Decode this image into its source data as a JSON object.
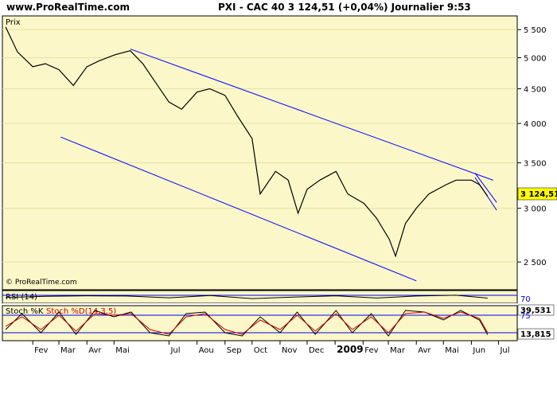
{
  "header": {
    "site": "www.ProRealTime.com",
    "quote": "PXI - CAC 40   3 124,51 (+0,04%)   Journalier  9:53"
  },
  "chart_data": [
    {
      "type": "line",
      "panel": "price",
      "label": "Prix",
      "watermark": "© ProRealTime.com",
      "last_value_label": "3 124,51",
      "yticks": [
        "5 500",
        "5 000",
        "4 500",
        "4 000",
        "3 500",
        "3 000",
        "2 500"
      ],
      "ytick_values": [
        5500,
        5000,
        4500,
        4000,
        3500,
        3000,
        2500
      ],
      "ylim": [
        2300,
        5700
      ],
      "log_scale": true,
      "x": [
        "2008-01-02",
        "2008-01-15",
        "2008-02-01",
        "2008-02-15",
        "2008-03-01",
        "2008-03-17",
        "2008-04-01",
        "2008-04-15",
        "2008-05-02",
        "2008-05-19",
        "2008-06-02",
        "2008-06-16",
        "2008-07-01",
        "2008-07-15",
        "2008-08-01",
        "2008-08-15",
        "2008-09-01",
        "2008-09-15",
        "2008-10-01",
        "2008-10-10",
        "2008-10-27",
        "2008-11-10",
        "2008-11-21",
        "2008-12-01",
        "2008-12-15",
        "2009-01-02",
        "2009-01-15",
        "2009-02-02",
        "2009-02-16",
        "2009-03-02",
        "2009-03-09",
        "2009-03-20",
        "2009-04-01",
        "2009-04-15",
        "2009-05-04",
        "2009-05-15",
        "2009-06-01",
        "2009-06-10",
        "2009-06-19"
      ],
      "values": [
        5550,
        5100,
        4850,
        4900,
        4800,
        4550,
        4850,
        4950,
        5050,
        5120,
        4900,
        4600,
        4300,
        4200,
        4450,
        4500,
        4400,
        4100,
        3800,
        3150,
        3400,
        3300,
        2950,
        3200,
        3300,
        3400,
        3150,
        3050,
        2900,
        2700,
        2550,
        2850,
        3000,
        3150,
        3250,
        3300,
        3300,
        3250,
        3125
      ],
      "channel_lines": [
        {
          "x": [
            "2008-05-19",
            "2009-06-25"
          ],
          "values": [
            5150,
            3300
          ]
        },
        {
          "x": [
            "2008-03-03",
            "2009-04-01"
          ],
          "values": [
            3820,
            2345
          ]
        },
        {
          "x": [
            "2009-06-05",
            "2009-06-29"
          ],
          "values": [
            3380,
            3060
          ]
        },
        {
          "x": [
            "2009-06-05",
            "2009-06-29"
          ],
          "values": [
            3330,
            2980
          ]
        }
      ]
    },
    {
      "type": "line",
      "panel": "rsi",
      "label": "RSI (14)",
      "level_label": "70",
      "last_value_label": "39,531",
      "ylim": [
        0,
        100
      ],
      "x": [
        "2008-01-02",
        "2008-02-15",
        "2008-04-01",
        "2008-05-15",
        "2008-07-01",
        "2008-08-15",
        "2008-10-01",
        "2008-11-15",
        "2009-01-02",
        "2009-02-16",
        "2009-04-01",
        "2009-05-15",
        "2009-06-19"
      ],
      "values": [
        45,
        55,
        60,
        58,
        42,
        62,
        35,
        48,
        60,
        40,
        58,
        65,
        39.5
      ]
    },
    {
      "type": "line",
      "panel": "stochastic",
      "label": "Stoch %K",
      "label2": "Stoch %D(14,3,5)",
      "level_label": "75",
      "last_value_label": "13,815",
      "ylim": [
        0,
        100
      ],
      "series": [
        {
          "name": "Stoch %K",
          "color": "#000000",
          "x": [
            "2008-01-02",
            "2008-01-20",
            "2008-02-10",
            "2008-03-01",
            "2008-03-20",
            "2008-04-10",
            "2008-05-01",
            "2008-05-20",
            "2008-06-10",
            "2008-07-01",
            "2008-07-20",
            "2008-08-10",
            "2008-09-01",
            "2008-09-20",
            "2008-10-10",
            "2008-11-01",
            "2008-11-20",
            "2008-12-10",
            "2009-01-02",
            "2009-01-20",
            "2009-02-10",
            "2009-03-01",
            "2009-03-20",
            "2009-04-10",
            "2009-05-01",
            "2009-05-20",
            "2009-06-10",
            "2009-06-19"
          ],
          "values": [
            30,
            80,
            20,
            85,
            15,
            90,
            70,
            85,
            20,
            10,
            80,
            85,
            20,
            10,
            70,
            20,
            85,
            15,
            90,
            20,
            80,
            10,
            90,
            85,
            60,
            90,
            60,
            13.8
          ]
        },
        {
          "name": "Stoch %D(14,3,5)",
          "color": "#cc0000",
          "x": [
            "2008-01-02",
            "2008-01-20",
            "2008-02-10",
            "2008-03-01",
            "2008-03-20",
            "2008-04-10",
            "2008-05-01",
            "2008-05-20",
            "2008-06-10",
            "2008-07-01",
            "2008-07-20",
            "2008-08-10",
            "2008-09-01",
            "2008-09-20",
            "2008-10-10",
            "2008-11-01",
            "2008-11-20",
            "2008-12-10",
            "2009-01-02",
            "2009-01-20",
            "2009-02-10",
            "2009-03-01",
            "2009-03-20",
            "2009-04-10",
            "2009-05-01",
            "2009-05-20",
            "2009-06-10",
            "2009-06-19"
          ],
          "values": [
            40,
            70,
            30,
            75,
            25,
            80,
            75,
            80,
            30,
            15,
            70,
            80,
            30,
            15,
            60,
            30,
            75,
            25,
            80,
            30,
            70,
            20,
            80,
            85,
            65,
            85,
            65,
            20
          ]
        }
      ]
    }
  ],
  "x_axis": {
    "start": "2008-01-01",
    "end": "2009-07-20",
    "ticks": [
      {
        "label": "Fev",
        "date": "2008-02-01"
      },
      {
        "label": "Mar",
        "date": "2008-03-01"
      },
      {
        "label": "Avr",
        "date": "2008-04-01"
      },
      {
        "label": "Mai",
        "date": "2008-05-01"
      },
      {
        "label": "Jul",
        "date": "2008-07-01"
      },
      {
        "label": "Aou",
        "date": "2008-08-01"
      },
      {
        "label": "Sep",
        "date": "2008-09-01"
      },
      {
        "label": "Oct",
        "date": "2008-10-01"
      },
      {
        "label": "Nov",
        "date": "2008-11-01"
      },
      {
        "label": "Dec",
        "date": "2008-12-01"
      },
      {
        "label": "2009",
        "date": "2009-01-01",
        "bold": true
      },
      {
        "label": "Fev",
        "date": "2009-02-01"
      },
      {
        "label": "Mar",
        "date": "2009-03-01"
      },
      {
        "label": "Avr",
        "date": "2009-04-01"
      },
      {
        "label": "Mai",
        "date": "2009-05-01"
      },
      {
        "label": "Jun",
        "date": "2009-06-01"
      },
      {
        "label": "Jul",
        "date": "2009-07-01"
      }
    ]
  },
  "colors": {
    "panel_bg": "#fbf7c8",
    "channel": "#0000ff",
    "level": "#0000ff",
    "price_label_bg": "#ffff00",
    "stoch_d": "#cc0000",
    "grid": "#e8e2a8"
  }
}
